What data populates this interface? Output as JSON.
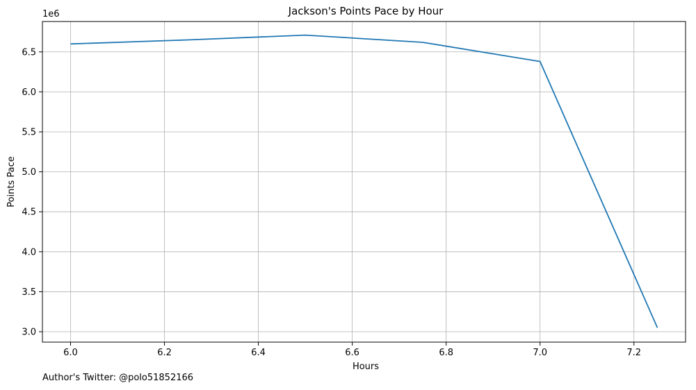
{
  "chart_data": {
    "type": "line",
    "title": "Jackson's Points Pace by Hour",
    "xlabel": "Hours",
    "ylabel": "Points Pace",
    "offset_text": "1e6",
    "xlim": [
      5.94,
      7.31
    ],
    "ylim": [
      2870000,
      6880000
    ],
    "x_ticks": [
      6.0,
      6.2,
      6.4,
      6.6,
      6.8,
      7.0,
      7.2
    ],
    "x_tick_labels": [
      "6.0",
      "6.2",
      "6.4",
      "6.6",
      "6.8",
      "7.0",
      "7.2"
    ],
    "y_ticks": [
      3000000,
      3500000,
      4000000,
      4500000,
      5000000,
      5500000,
      6000000,
      6500000
    ],
    "y_tick_labels": [
      "3.0",
      "3.5",
      "4.0",
      "4.5",
      "5.0",
      "5.5",
      "6.0",
      "6.5"
    ],
    "grid": true,
    "series": [
      {
        "color": "#1f77b4",
        "x": [
          6.0,
          6.25,
          6.5,
          6.75,
          7.0,
          7.25
        ],
        "y": [
          6600000,
          6650000,
          6710000,
          6620000,
          6380000,
          3050000
        ]
      }
    ]
  },
  "footer": {
    "text": "Author's Twitter: @polo51852166"
  }
}
